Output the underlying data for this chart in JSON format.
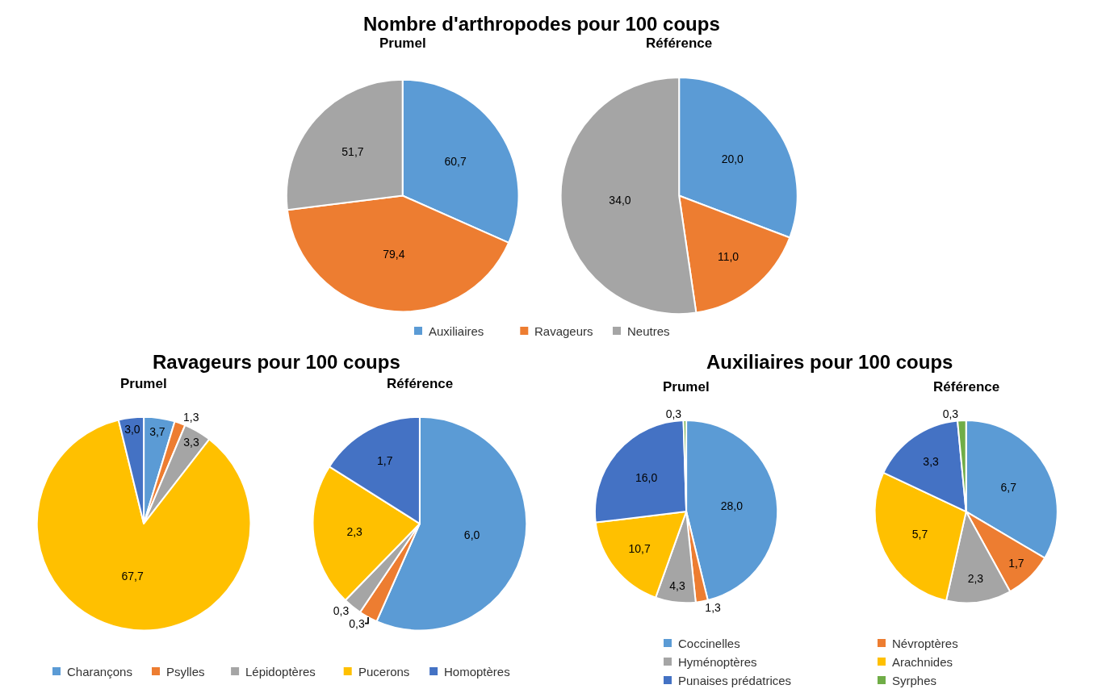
{
  "chart_data": [
    {
      "type": "pie",
      "title": "Nombre d'arthropodes pour 100 coups",
      "categories": [
        "Auxiliaires",
        "Ravageurs",
        "Neutres"
      ],
      "colors": [
        "#5b9bd5",
        "#ed7d31",
        "#a5a5a5"
      ],
      "legend": "bottom",
      "series": [
        {
          "name": "Prumel",
          "values": [
            60.7,
            79.4,
            51.7
          ],
          "value_labels": [
            "60,7",
            "79,4",
            "51,7"
          ]
        },
        {
          "name": "Référence",
          "values": [
            20.0,
            11.0,
            34.0
          ],
          "value_labels": [
            "20,0",
            "11,0",
            "34,0"
          ]
        }
      ]
    },
    {
      "type": "pie",
      "title": "Ravageurs pour 100 coups",
      "categories": [
        "Charançons",
        "Psylles",
        "Lépidoptères",
        "Pucerons",
        "Homoptères"
      ],
      "colors": [
        "#5b9bd5",
        "#ed7d31",
        "#a5a5a5",
        "#ffc000",
        "#4472c4"
      ],
      "legend": "bottom",
      "series": [
        {
          "name": "Prumel",
          "values": [
            3.7,
            1.3,
            3.3,
            67.7,
            3.0
          ],
          "value_labels": [
            "3,7",
            "1,3",
            "3,3",
            "67,7",
            "3,0"
          ]
        },
        {
          "name": "Référence",
          "values": [
            6.0,
            0.3,
            0.3,
            2.3,
            1.7
          ],
          "value_labels": [
            "6,0",
            "0,3",
            "0,3",
            "2,3",
            "1,7"
          ]
        }
      ]
    },
    {
      "type": "pie",
      "title": "Auxiliaires pour 100 coups",
      "categories": [
        "Coccinelles",
        "Névroptères",
        "Hyménoptères",
        "Arachnides",
        "Punaises prédatrices",
        "Syrphes"
      ],
      "colors": [
        "#5b9bd5",
        "#ed7d31",
        "#a5a5a5",
        "#ffc000",
        "#4472c4",
        "#70ad47"
      ],
      "legend": "bottom",
      "series": [
        {
          "name": "Prumel",
          "values": [
            28.0,
            1.3,
            4.3,
            10.7,
            16.0,
            0.3
          ],
          "value_labels": [
            "28,0",
            "1,3",
            "4,3",
            "10,7",
            "16,0",
            "0,3"
          ]
        },
        {
          "name": "Référence",
          "values": [
            6.7,
            1.7,
            2.3,
            5.7,
            3.3,
            0.3
          ],
          "value_labels": [
            "6,7",
            "1,7",
            "2,3",
            "5,7",
            "3,3",
            "0,3"
          ]
        }
      ]
    }
  ]
}
